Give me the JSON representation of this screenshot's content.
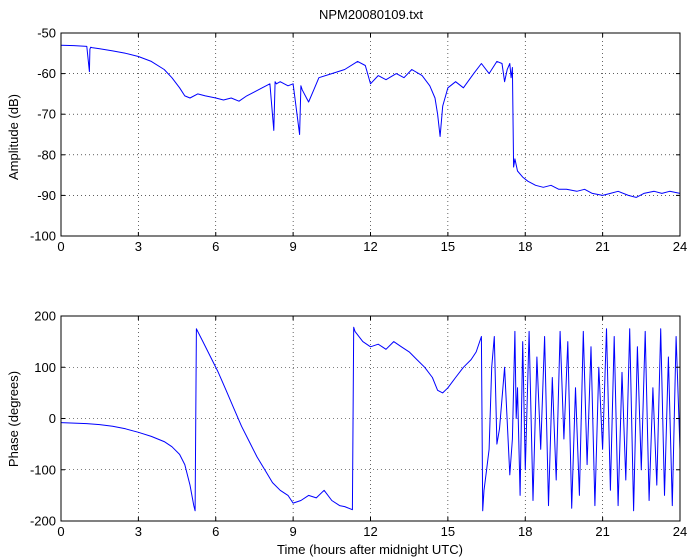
{
  "chart_data": [
    {
      "type": "line",
      "title": "NPM20080109.txt",
      "xlabel": "",
      "ylabel": "Amplitude (dB)",
      "xlim": [
        0,
        24
      ],
      "ylim": [
        -100,
        -50
      ],
      "xticks": [
        0,
        3,
        6,
        9,
        12,
        15,
        18,
        21,
        24
      ],
      "yticks": [
        -100,
        -90,
        -80,
        -70,
        -60,
        -50
      ],
      "grid": true,
      "color": "#0000ff",
      "series": [
        {
          "x": [
            0,
            0.5,
            1.0,
            1.1,
            1.12,
            1.15,
            1.2,
            1.5,
            2.0,
            2.5,
            3.0,
            3.5,
            4.0,
            4.3,
            4.6,
            4.8,
            5.0,
            5.3,
            5.6,
            6.0,
            6.3,
            6.6,
            6.9,
            7.2,
            7.5,
            7.8,
            8.1,
            8.25,
            8.3,
            8.35,
            8.5,
            8.8,
            9.0,
            9.25,
            9.3,
            9.35,
            9.6,
            9.8,
            10.0,
            10.5,
            11.0,
            11.5,
            11.8,
            12.0,
            12.3,
            12.6,
            13.0,
            13.3,
            13.6,
            14.0,
            14.3,
            14.5,
            14.6,
            14.7,
            14.8,
            15.0,
            15.3,
            15.6,
            16.0,
            16.3,
            16.6,
            16.9,
            17.1,
            17.2,
            17.3,
            17.4,
            17.45,
            17.5,
            17.55,
            17.6,
            17.7,
            17.9,
            18.1,
            18.4,
            18.7,
            19.0,
            19.3,
            19.6,
            20.0,
            20.3,
            20.6,
            21.0,
            21.3,
            21.6,
            22.0,
            22.3,
            22.6,
            23.0,
            23.3,
            23.6,
            24.0
          ],
          "y": [
            -53,
            -53.1,
            -53.3,
            -59.5,
            -54,
            -53.5,
            -53.6,
            -53.9,
            -54.4,
            -55.0,
            -55.8,
            -57.0,
            -59.0,
            -61.0,
            -63.5,
            -65.5,
            -66.0,
            -65.0,
            -65.5,
            -66.0,
            -66.5,
            -66.0,
            -66.8,
            -65.5,
            -64.5,
            -63.5,
            -62.5,
            -74,
            -62,
            -62.5,
            -62.0,
            -63.0,
            -62.5,
            -75,
            -63,
            -64,
            -67.0,
            -64.0,
            -61.0,
            -60.0,
            -59.0,
            -57.0,
            -58.0,
            -62.5,
            -60.5,
            -61.5,
            -60.0,
            -61.0,
            -59.0,
            -60.5,
            -63.0,
            -66.0,
            -70.0,
            -75.5,
            -68.0,
            -63.5,
            -62.0,
            -63.5,
            -60.0,
            -57.5,
            -60.0,
            -57.0,
            -57.5,
            -62.0,
            -59.0,
            -57.5,
            -61.0,
            -58.5,
            -83.0,
            -81.0,
            -84.0,
            -85.5,
            -86.5,
            -87.5,
            -88.0,
            -87.5,
            -88.5,
            -88.5,
            -89.0,
            -88.5,
            -89.5,
            -90.0,
            -89.5,
            -89.0,
            -90.0,
            -90.5,
            -89.5,
            -89.0,
            -89.5,
            -89.0,
            -89.5
          ]
        }
      ]
    },
    {
      "type": "line",
      "title": "",
      "xlabel": "Time (hours after midnight UTC)",
      "ylabel": "Phase (degrees)",
      "xlim": [
        0,
        24
      ],
      "ylim": [
        -200,
        200
      ],
      "xticks": [
        0,
        3,
        6,
        9,
        12,
        15,
        18,
        21,
        24
      ],
      "yticks": [
        -200,
        -100,
        0,
        100,
        200
      ],
      "grid": true,
      "color": "#0000ff",
      "series": [
        {
          "x": [
            0,
            0.5,
            1.0,
            1.5,
            2.0,
            2.5,
            3.0,
            3.5,
            4.0,
            4.3,
            4.6,
            4.8,
            5.0,
            5.15,
            5.2,
            5.25,
            5.5,
            5.8,
            6.1,
            6.4,
            6.7,
            7.0,
            7.3,
            7.6,
            7.9,
            8.2,
            8.5,
            8.8,
            9.0,
            9.3,
            9.6,
            9.9,
            10.2,
            10.5,
            10.8,
            11.0,
            11.3,
            11.35,
            11.4,
            11.7,
            12.0,
            12.3,
            12.6,
            12.9,
            13.2,
            13.5,
            13.8,
            14.1,
            14.4,
            14.6,
            14.8,
            15.0,
            15.3,
            15.6,
            15.9,
            16.1,
            16.3,
            16.35,
            16.4,
            16.5,
            16.6,
            16.7,
            16.8,
            16.9,
            17.0,
            17.2,
            17.4,
            17.5,
            17.6,
            17.65,
            17.7,
            17.8,
            17.9,
            18.0,
            18.15,
            18.3,
            18.45,
            18.6,
            18.75,
            18.9,
            19.05,
            19.2,
            19.35,
            19.5,
            19.65,
            19.8,
            19.95,
            20.1,
            20.25,
            20.4,
            20.55,
            20.7,
            20.85,
            21.0,
            21.15,
            21.3,
            21.45,
            21.6,
            21.75,
            21.9,
            22.05,
            22.2,
            22.35,
            22.5,
            22.65,
            22.8,
            22.95,
            23.1,
            23.25,
            23.4,
            23.55,
            23.7,
            23.85,
            24.0
          ],
          "y": [
            -8,
            -9,
            -10,
            -12,
            -15,
            -20,
            -27,
            -35,
            -45,
            -55,
            -70,
            -90,
            -130,
            -170,
            -180,
            175,
            150,
            120,
            90,
            55,
            20,
            -15,
            -45,
            -75,
            -100,
            -125,
            -140,
            -150,
            -165,
            -160,
            -150,
            -155,
            -140,
            -160,
            -170,
            -172,
            -178,
            178,
            170,
            150,
            140,
            145,
            135,
            150,
            140,
            130,
            115,
            100,
            80,
            55,
            50,
            60,
            80,
            100,
            115,
            130,
            160,
            -180,
            -140,
            -100,
            -60,
            100,
            160,
            -50,
            -20,
            100,
            -110,
            -40,
            170,
            0,
            60,
            -150,
            150,
            -100,
            170,
            -160,
            120,
            -60,
            160,
            -170,
            80,
            -120,
            170,
            -40,
            150,
            -175,
            60,
            -150,
            170,
            -90,
            140,
            -170,
            100,
            -60,
            175,
            -140,
            160,
            -170,
            90,
            -120,
            175,
            -180,
            140,
            -100,
            170,
            -160,
            60,
            -130,
            175,
            -150,
            120,
            -170,
            160,
            -60
          ]
        }
      ]
    }
  ]
}
